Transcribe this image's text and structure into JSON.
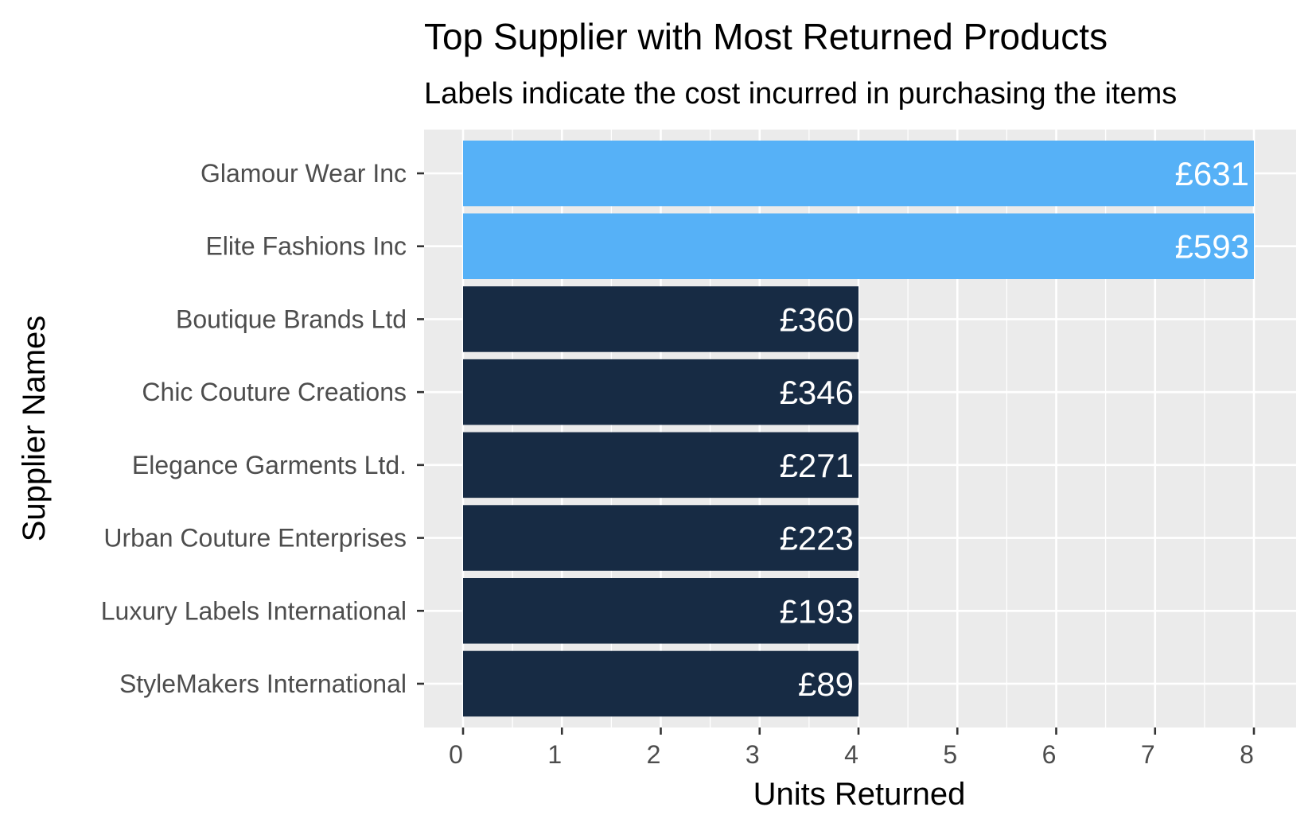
{
  "chart_data": {
    "type": "bar",
    "orientation": "horizontal",
    "title": "Top Supplier with Most Returned Products",
    "subtitle": "Labels indicate the cost incurred in purchasing the items",
    "xlabel": "Units Returned",
    "ylabel": "Supplier Names",
    "xlim": [
      0,
      8
    ],
    "x_ticks": [
      "0",
      "1",
      "2",
      "3",
      "4",
      "5",
      "6",
      "7",
      "8"
    ],
    "grid": true,
    "categories": [
      "Glamour Wear Inc",
      "Elite Fashions Inc",
      "Boutique Brands Ltd",
      "Chic Couture Creations",
      "Elegance Garments Ltd.",
      "Urban Couture Enterprises",
      "Luxury Labels International",
      "StyleMakers International"
    ],
    "values": [
      8,
      8,
      4,
      4,
      4,
      4,
      4,
      4
    ],
    "labels": [
      "£631",
      "£593",
      "£360",
      "£346",
      "£271",
      "£223",
      "£193",
      "£89"
    ],
    "colors": {
      "highlight": "#56b1f7",
      "default": "#172b44",
      "panel_background": "#ebebeb",
      "grid": "#ffffff"
    },
    "bar_colors": [
      "highlight",
      "highlight",
      "default",
      "default",
      "default",
      "default",
      "default",
      "default"
    ]
  }
}
